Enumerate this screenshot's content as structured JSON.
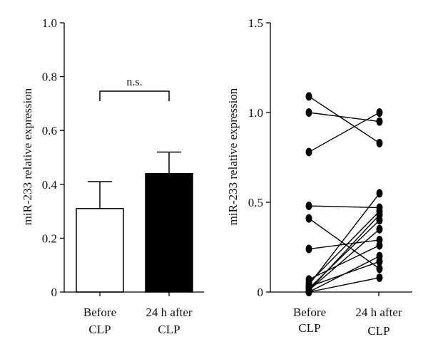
{
  "chart_data": [
    {
      "type": "bar",
      "ylabel": "miR-233 relative expression",
      "ylim": [
        0,
        1.0
      ],
      "yticks": [
        "0",
        "0.2",
        "0.4",
        "0.6",
        "0.8",
        "1.0"
      ],
      "categories": [
        {
          "line1": "Before",
          "line2": "CLP"
        },
        {
          "line1": "24 h after",
          "line2": "CLP"
        }
      ],
      "values": [
        0.31,
        0.44
      ],
      "errors": [
        0.1,
        0.08
      ],
      "bar_colors": [
        "#ffffff",
        "#000000"
      ],
      "annotation": "n.s."
    },
    {
      "type": "scatter",
      "ylabel": "miR-233 relative expression",
      "ylim": [
        0,
        1.5
      ],
      "yticks": [
        "0",
        "0.5",
        "1.0",
        "1.5"
      ],
      "categories": [
        {
          "line1": "Before",
          "line2": "CLP"
        },
        {
          "line1": "24 h after",
          "line2": "CLP"
        }
      ],
      "pairs": [
        [
          1.09,
          0.83
        ],
        [
          1.0,
          0.95
        ],
        [
          0.78,
          1.0
        ],
        [
          0.48,
          0.47
        ],
        [
          0.41,
          0.13
        ],
        [
          0.24,
          0.29
        ],
        [
          0.07,
          0.26
        ],
        [
          0.05,
          0.45
        ],
        [
          0.04,
          0.55
        ],
        [
          0.03,
          0.17
        ],
        [
          0.02,
          0.4
        ],
        [
          0.01,
          0.35
        ],
        [
          0.01,
          0.43
        ],
        [
          0.0,
          0.2
        ],
        [
          0.0,
          0.08
        ]
      ]
    }
  ]
}
